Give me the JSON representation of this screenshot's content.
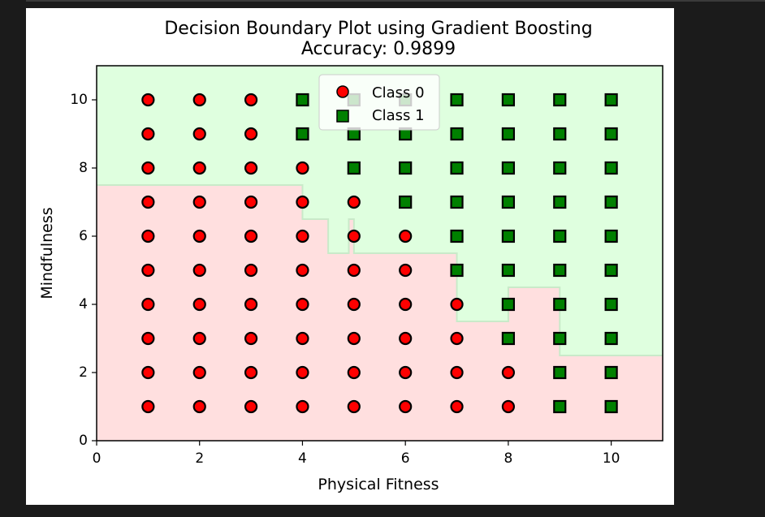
{
  "chart_data": {
    "type": "scatter",
    "title": "Decision Boundary Plot using Gradient Boosting",
    "subtitle": "Accuracy: 0.9899",
    "xlabel": "Physical Fitness",
    "ylabel": "Mindfulness",
    "xlim": [
      0,
      11
    ],
    "ylim": [
      0,
      11
    ],
    "xticks": [
      0,
      2,
      4,
      6,
      8,
      10
    ],
    "yticks": [
      0,
      2,
      4,
      6,
      8,
      10
    ],
    "grid": false,
    "legend_position": "upper-center",
    "region_colors": {
      "class_0": "#ffdfdf",
      "class_1": "#dfffdf",
      "boundary": "#c9eac9"
    },
    "boundary_steps": [
      [
        0,
        7.5
      ],
      [
        4,
        6.5
      ],
      [
        4.5,
        5.5
      ],
      [
        4.9,
        6.5
      ],
      [
        5,
        5.5
      ],
      [
        7,
        3.5
      ],
      [
        8,
        4.5
      ],
      [
        9,
        2.5
      ],
      [
        11,
        2.5
      ]
    ],
    "series": [
      {
        "name": "Class 0",
        "marker": "circle",
        "color": "#ff0000",
        "edge": "#000000",
        "points": [
          [
            1,
            1
          ],
          [
            1,
            2
          ],
          [
            1,
            3
          ],
          [
            1,
            4
          ],
          [
            1,
            5
          ],
          [
            1,
            6
          ],
          [
            1,
            7
          ],
          [
            1,
            8
          ],
          [
            1,
            9
          ],
          [
            1,
            10
          ],
          [
            2,
            1
          ],
          [
            2,
            2
          ],
          [
            2,
            3
          ],
          [
            2,
            4
          ],
          [
            2,
            5
          ],
          [
            2,
            6
          ],
          [
            2,
            7
          ],
          [
            2,
            8
          ],
          [
            2,
            9
          ],
          [
            2,
            10
          ],
          [
            3,
            1
          ],
          [
            3,
            2
          ],
          [
            3,
            3
          ],
          [
            3,
            4
          ],
          [
            3,
            5
          ],
          [
            3,
            6
          ],
          [
            3,
            7
          ],
          [
            3,
            8
          ],
          [
            3,
            9
          ],
          [
            3,
            10
          ],
          [
            4,
            1
          ],
          [
            4,
            2
          ],
          [
            4,
            3
          ],
          [
            4,
            4
          ],
          [
            4,
            5
          ],
          [
            4,
            6
          ],
          [
            4,
            7
          ],
          [
            4,
            8
          ],
          [
            5,
            1
          ],
          [
            5,
            2
          ],
          [
            5,
            3
          ],
          [
            5,
            4
          ],
          [
            5,
            5
          ],
          [
            5,
            6
          ],
          [
            5,
            7
          ],
          [
            6,
            1
          ],
          [
            6,
            2
          ],
          [
            6,
            3
          ],
          [
            6,
            4
          ],
          [
            6,
            5
          ],
          [
            6,
            6
          ],
          [
            7,
            1
          ],
          [
            7,
            2
          ],
          [
            7,
            3
          ],
          [
            7,
            4
          ],
          [
            8,
            1
          ],
          [
            8,
            2
          ]
        ]
      },
      {
        "name": "Class 1",
        "marker": "square",
        "color": "#008000",
        "edge": "#000000",
        "points": [
          [
            4,
            9
          ],
          [
            4,
            10
          ],
          [
            5,
            8
          ],
          [
            5,
            9
          ],
          [
            5,
            10
          ],
          [
            6,
            7
          ],
          [
            6,
            8
          ],
          [
            6,
            9
          ],
          [
            6,
            10
          ],
          [
            7,
            5
          ],
          [
            7,
            6
          ],
          [
            7,
            7
          ],
          [
            7,
            8
          ],
          [
            7,
            9
          ],
          [
            7,
            10
          ],
          [
            8,
            3
          ],
          [
            8,
            4
          ],
          [
            8,
            5
          ],
          [
            8,
            6
          ],
          [
            8,
            7
          ],
          [
            8,
            8
          ],
          [
            8,
            9
          ],
          [
            8,
            10
          ],
          [
            9,
            1
          ],
          [
            9,
            2
          ],
          [
            9,
            3
          ],
          [
            9,
            4
          ],
          [
            9,
            5
          ],
          [
            9,
            6
          ],
          [
            9,
            7
          ],
          [
            9,
            8
          ],
          [
            9,
            9
          ],
          [
            9,
            10
          ],
          [
            10,
            1
          ],
          [
            10,
            2
          ],
          [
            10,
            3
          ],
          [
            10,
            4
          ],
          [
            10,
            5
          ],
          [
            10,
            6
          ],
          [
            10,
            7
          ],
          [
            10,
            8
          ],
          [
            10,
            9
          ],
          [
            10,
            10
          ]
        ]
      }
    ]
  }
}
